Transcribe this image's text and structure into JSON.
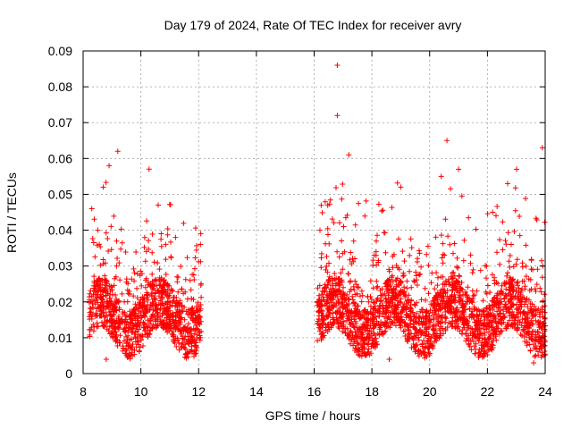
{
  "chart_data": {
    "type": "scatter",
    "title": "Day 179 of 2024, Rate Of TEC Index for receiver avry",
    "xlabel": "GPS time / hours",
    "ylabel": "ROTI / TECUs",
    "xlim": [
      8,
      24
    ],
    "ylim": [
      0,
      0.09
    ],
    "xticks": [
      8,
      10,
      12,
      14,
      16,
      18,
      20,
      22,
      24
    ],
    "yticks": [
      0,
      0.01,
      0.02,
      0.03,
      0.04,
      0.05,
      0.06,
      0.07,
      0.08,
      0.09
    ],
    "ytick_labels": [
      "0",
      "0.01",
      "0.02",
      "0.03",
      "0.04",
      "0.05",
      "0.06",
      "0.07",
      "0.08",
      "0.09"
    ],
    "grid": true,
    "marker": "+",
    "color": "#ff0000",
    "series": [
      {
        "name": "ROTI",
        "segments": [
          {
            "x_start": 8.2,
            "x_end": 12.1
          },
          {
            "x_start": 16.1,
            "x_end": 24.0
          }
        ],
        "notable_points": [
          {
            "x": 16.8,
            "y": 0.086
          },
          {
            "x": 16.8,
            "y": 0.072
          },
          {
            "x": 20.6,
            "y": 0.065
          },
          {
            "x": 23.9,
            "y": 0.063
          },
          {
            "x": 9.2,
            "y": 0.062
          },
          {
            "x": 17.2,
            "y": 0.061
          },
          {
            "x": 8.9,
            "y": 0.058
          },
          {
            "x": 21.0,
            "y": 0.057
          },
          {
            "x": 20.4,
            "y": 0.055
          },
          {
            "x": 22.7,
            "y": 0.053
          },
          {
            "x": 19.0,
            "y": 0.052
          },
          {
            "x": 8.7,
            "y": 0.052
          },
          {
            "x": 8.3,
            "y": 0.046
          },
          {
            "x": 10.6,
            "y": 0.047
          },
          {
            "x": 11.2,
            "y": 0.038
          },
          {
            "x": 16.2,
            "y": 0.04
          },
          {
            "x": 8.8,
            "y": 0.004
          },
          {
            "x": 18.6,
            "y": 0.004
          },
          {
            "x": 23.6,
            "y": 0.003
          }
        ]
      }
    ]
  }
}
